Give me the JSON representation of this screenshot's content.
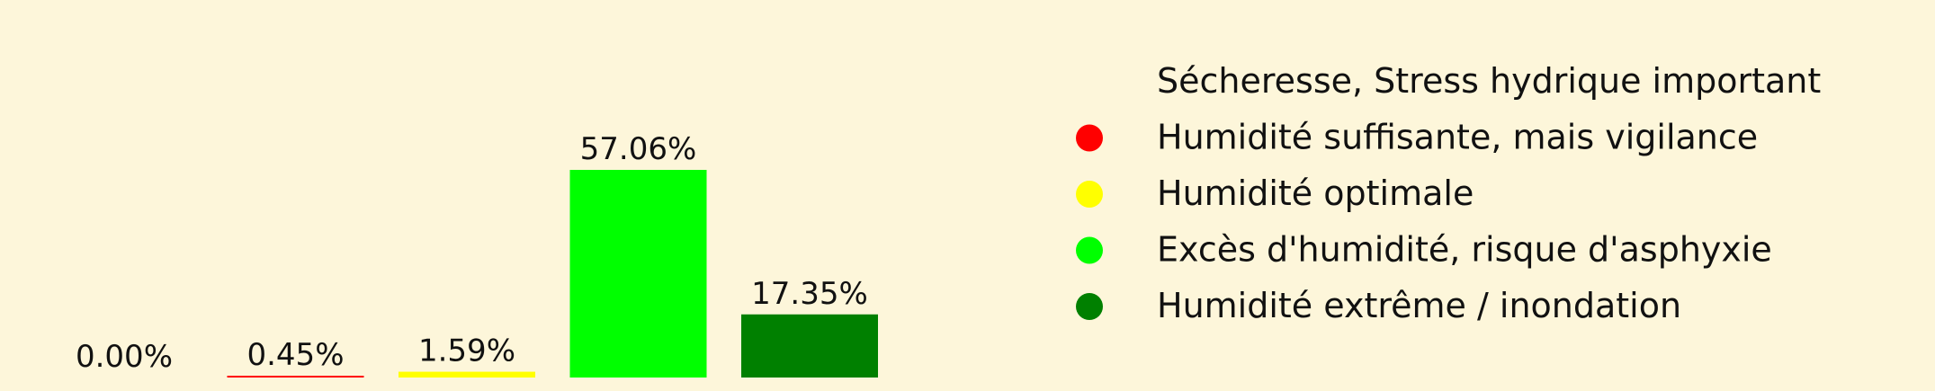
{
  "chart_data": {
    "type": "bar",
    "categories": [
      "Sécheresse, Stress hydrique important",
      "Humidité suffisante, mais vigilance",
      "Humidité optimale",
      "Excès d'humidité, risque d'asphyxie",
      "Humidité extrême / inondation"
    ],
    "values": [
      0.0,
      0.45,
      1.59,
      57.06,
      17.35
    ],
    "value_labels": [
      "0.00%",
      "0.45%",
      "1.59%",
      "57.06%",
      "17.35%"
    ],
    "colors": [
      "#fdf6da",
      "#ff0000",
      "#ffff00",
      "#00ff00",
      "#008000"
    ],
    "legend_placement": "right",
    "ylim": [
      0,
      60
    ],
    "grid": false
  }
}
